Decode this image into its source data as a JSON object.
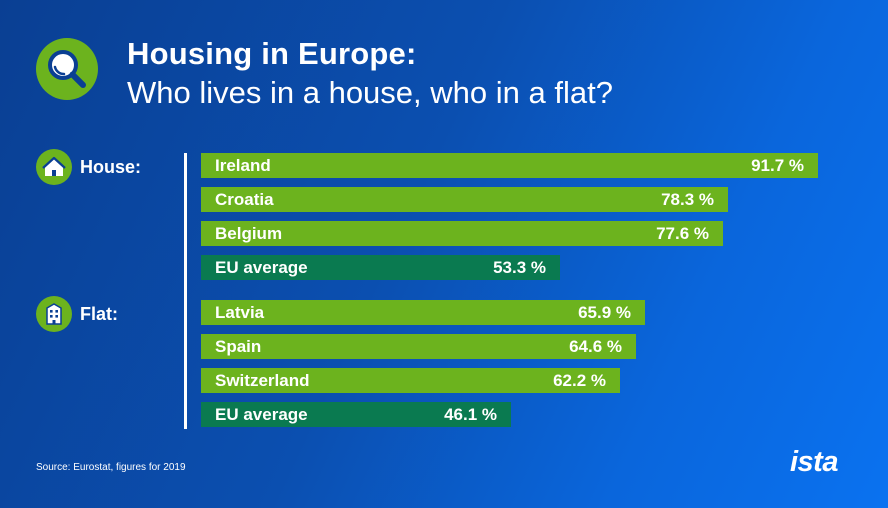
{
  "header": {
    "title_line1": "Housing in Europe:",
    "title_line2": "Who lives in a house, who in a flat?",
    "icon": "magnifier-icon"
  },
  "groups": {
    "house": {
      "label": "House:",
      "icon": "house-icon"
    },
    "flat": {
      "label": "Flat:",
      "icon": "apartment-building-icon"
    }
  },
  "colors": {
    "country_bar": "#6cb31e",
    "average_bar": "#0a7a50",
    "icon_circle": "#6cb31e"
  },
  "chart_data": {
    "type": "bar",
    "orientation": "horizontal",
    "title": "Housing in Europe: Who lives in a house, who in a flat?",
    "unit": "%",
    "xlim": [
      0,
      100
    ],
    "groups": [
      {
        "name": "House:",
        "categories": [
          "Ireland",
          "Croatia",
          "Belgium",
          "EU average"
        ],
        "values": [
          91.7,
          78.3,
          77.6,
          53.3
        ],
        "value_labels": [
          "91.7 %",
          "78.3 %",
          "77.6 %",
          "53.3 %"
        ]
      },
      {
        "name": "Flat:",
        "categories": [
          "Latvia",
          "Spain",
          "Switzerland",
          "EU average"
        ],
        "values": [
          65.9,
          64.6,
          62.2,
          46.1
        ],
        "value_labels": [
          "65.9 %",
          "64.6 %",
          "62.2 %",
          "46.1 %"
        ]
      }
    ]
  },
  "footer": {
    "source": "Source: Eurostat, figures for 2019",
    "brand": "ista"
  }
}
